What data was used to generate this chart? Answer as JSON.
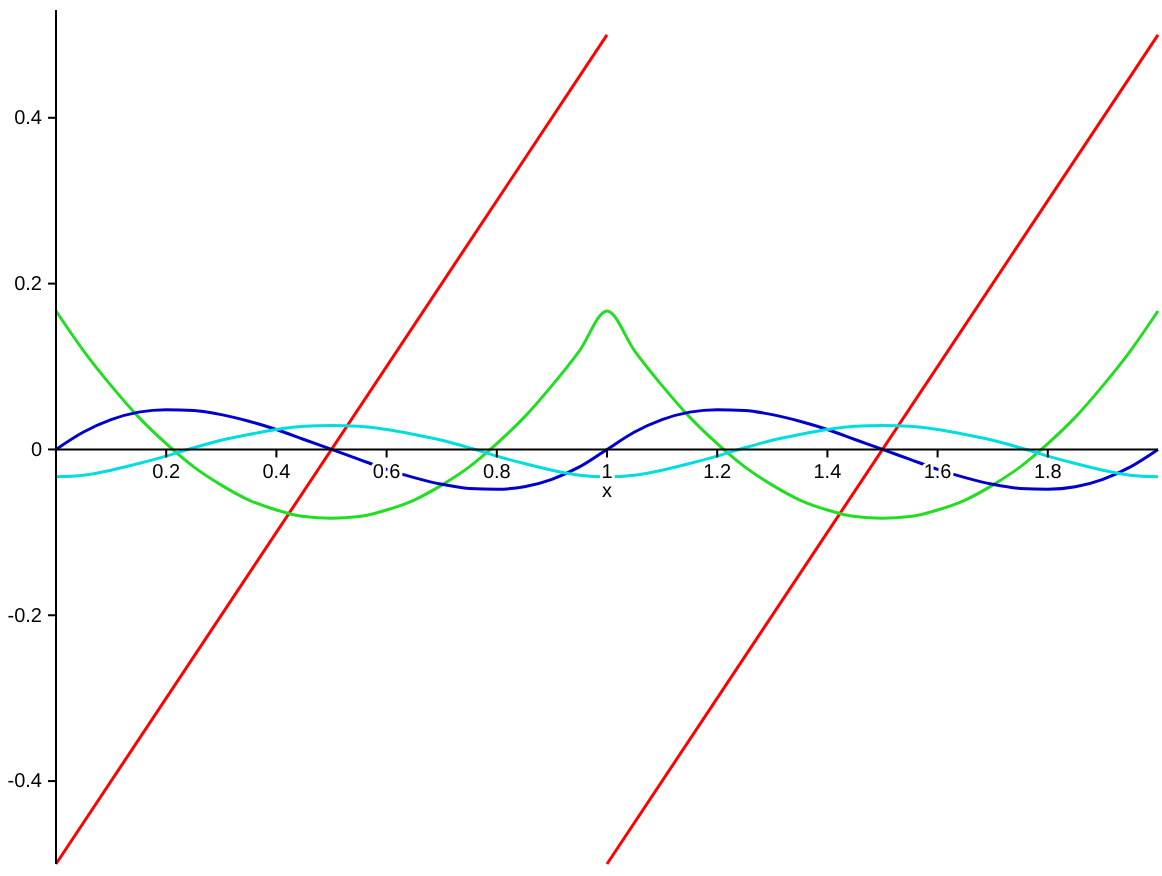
{
  "chart_data": {
    "type": "line",
    "xlabel": "x",
    "xlim": [
      0,
      2
    ],
    "ylim": [
      -0.5,
      0.53
    ],
    "xticks": [
      0.2,
      0.4,
      0.6,
      0.8,
      1,
      1.2,
      1.4,
      1.6,
      1.8
    ],
    "yticks": [
      -0.4,
      -0.2,
      0,
      0.2,
      0.4
    ],
    "x": [
      0,
      0.05,
      0.1,
      0.15,
      0.2,
      0.25,
      0.3,
      0.35,
      0.4,
      0.45,
      0.5,
      0.55,
      0.6,
      0.65,
      0.7,
      0.75,
      0.8,
      0.85,
      0.9,
      0.95,
      1,
      1.05,
      1.1,
      1.15,
      1.2,
      1.25,
      1.3,
      1.35,
      1.4,
      1.45,
      1.5,
      1.55,
      1.6,
      1.65,
      1.7,
      1.75,
      1.8,
      1.85,
      1.9,
      1.95,
      2
    ],
    "series": [
      {
        "color": "#ff0000",
        "x": [
          0,
          1
        ],
        "values": [
          -0.5,
          0.5
        ]
      },
      {
        "color": "#ff0000",
        "x": [
          1,
          2
        ],
        "values": [
          -0.5,
          0.5
        ]
      },
      {
        "color": "#22dd22",
        "values": [
          0.167,
          0.119,
          0.077,
          0.039,
          0.007,
          -0.021,
          -0.043,
          -0.061,
          -0.073,
          -0.081,
          -0.083,
          -0.081,
          -0.073,
          -0.061,
          -0.043,
          -0.021,
          0.007,
          0.039,
          0.077,
          0.119,
          0.167,
          0.119,
          0.077,
          0.039,
          0.007,
          -0.021,
          -0.043,
          -0.061,
          -0.073,
          -0.081,
          -0.083,
          -0.081,
          -0.073,
          -0.061,
          -0.043,
          -0.021,
          0.007,
          0.039,
          0.077,
          0.119,
          0.167
        ]
      },
      {
        "color": "#0000cc",
        "values": [
          0,
          0.021,
          0.036,
          0.045,
          0.048,
          0.047,
          0.042,
          0.034,
          0.024,
          0.012,
          0,
          -0.012,
          -0.024,
          -0.034,
          -0.042,
          -0.047,
          -0.048,
          -0.045,
          -0.036,
          -0.021,
          0,
          0.021,
          0.036,
          0.045,
          0.048,
          0.047,
          0.042,
          0.034,
          0.024,
          0.012,
          0,
          -0.012,
          -0.024,
          -0.034,
          -0.042,
          -0.047,
          -0.048,
          -0.045,
          -0.036,
          -0.021,
          0
        ]
      },
      {
        "color": "#00dddd",
        "values": [
          -0.033,
          -0.031,
          -0.025,
          -0.017,
          -0.008,
          0.002,
          0.011,
          0.018,
          0.024,
          0.028,
          0.029,
          0.028,
          0.024,
          0.018,
          0.011,
          0.002,
          -0.008,
          -0.017,
          -0.025,
          -0.031,
          -0.033,
          -0.031,
          -0.025,
          -0.017,
          -0.008,
          0.002,
          0.011,
          0.018,
          0.024,
          0.028,
          0.029,
          0.028,
          0.024,
          0.018,
          0.011,
          0.002,
          -0.008,
          -0.017,
          -0.025,
          -0.031,
          -0.033
        ]
      }
    ]
  }
}
